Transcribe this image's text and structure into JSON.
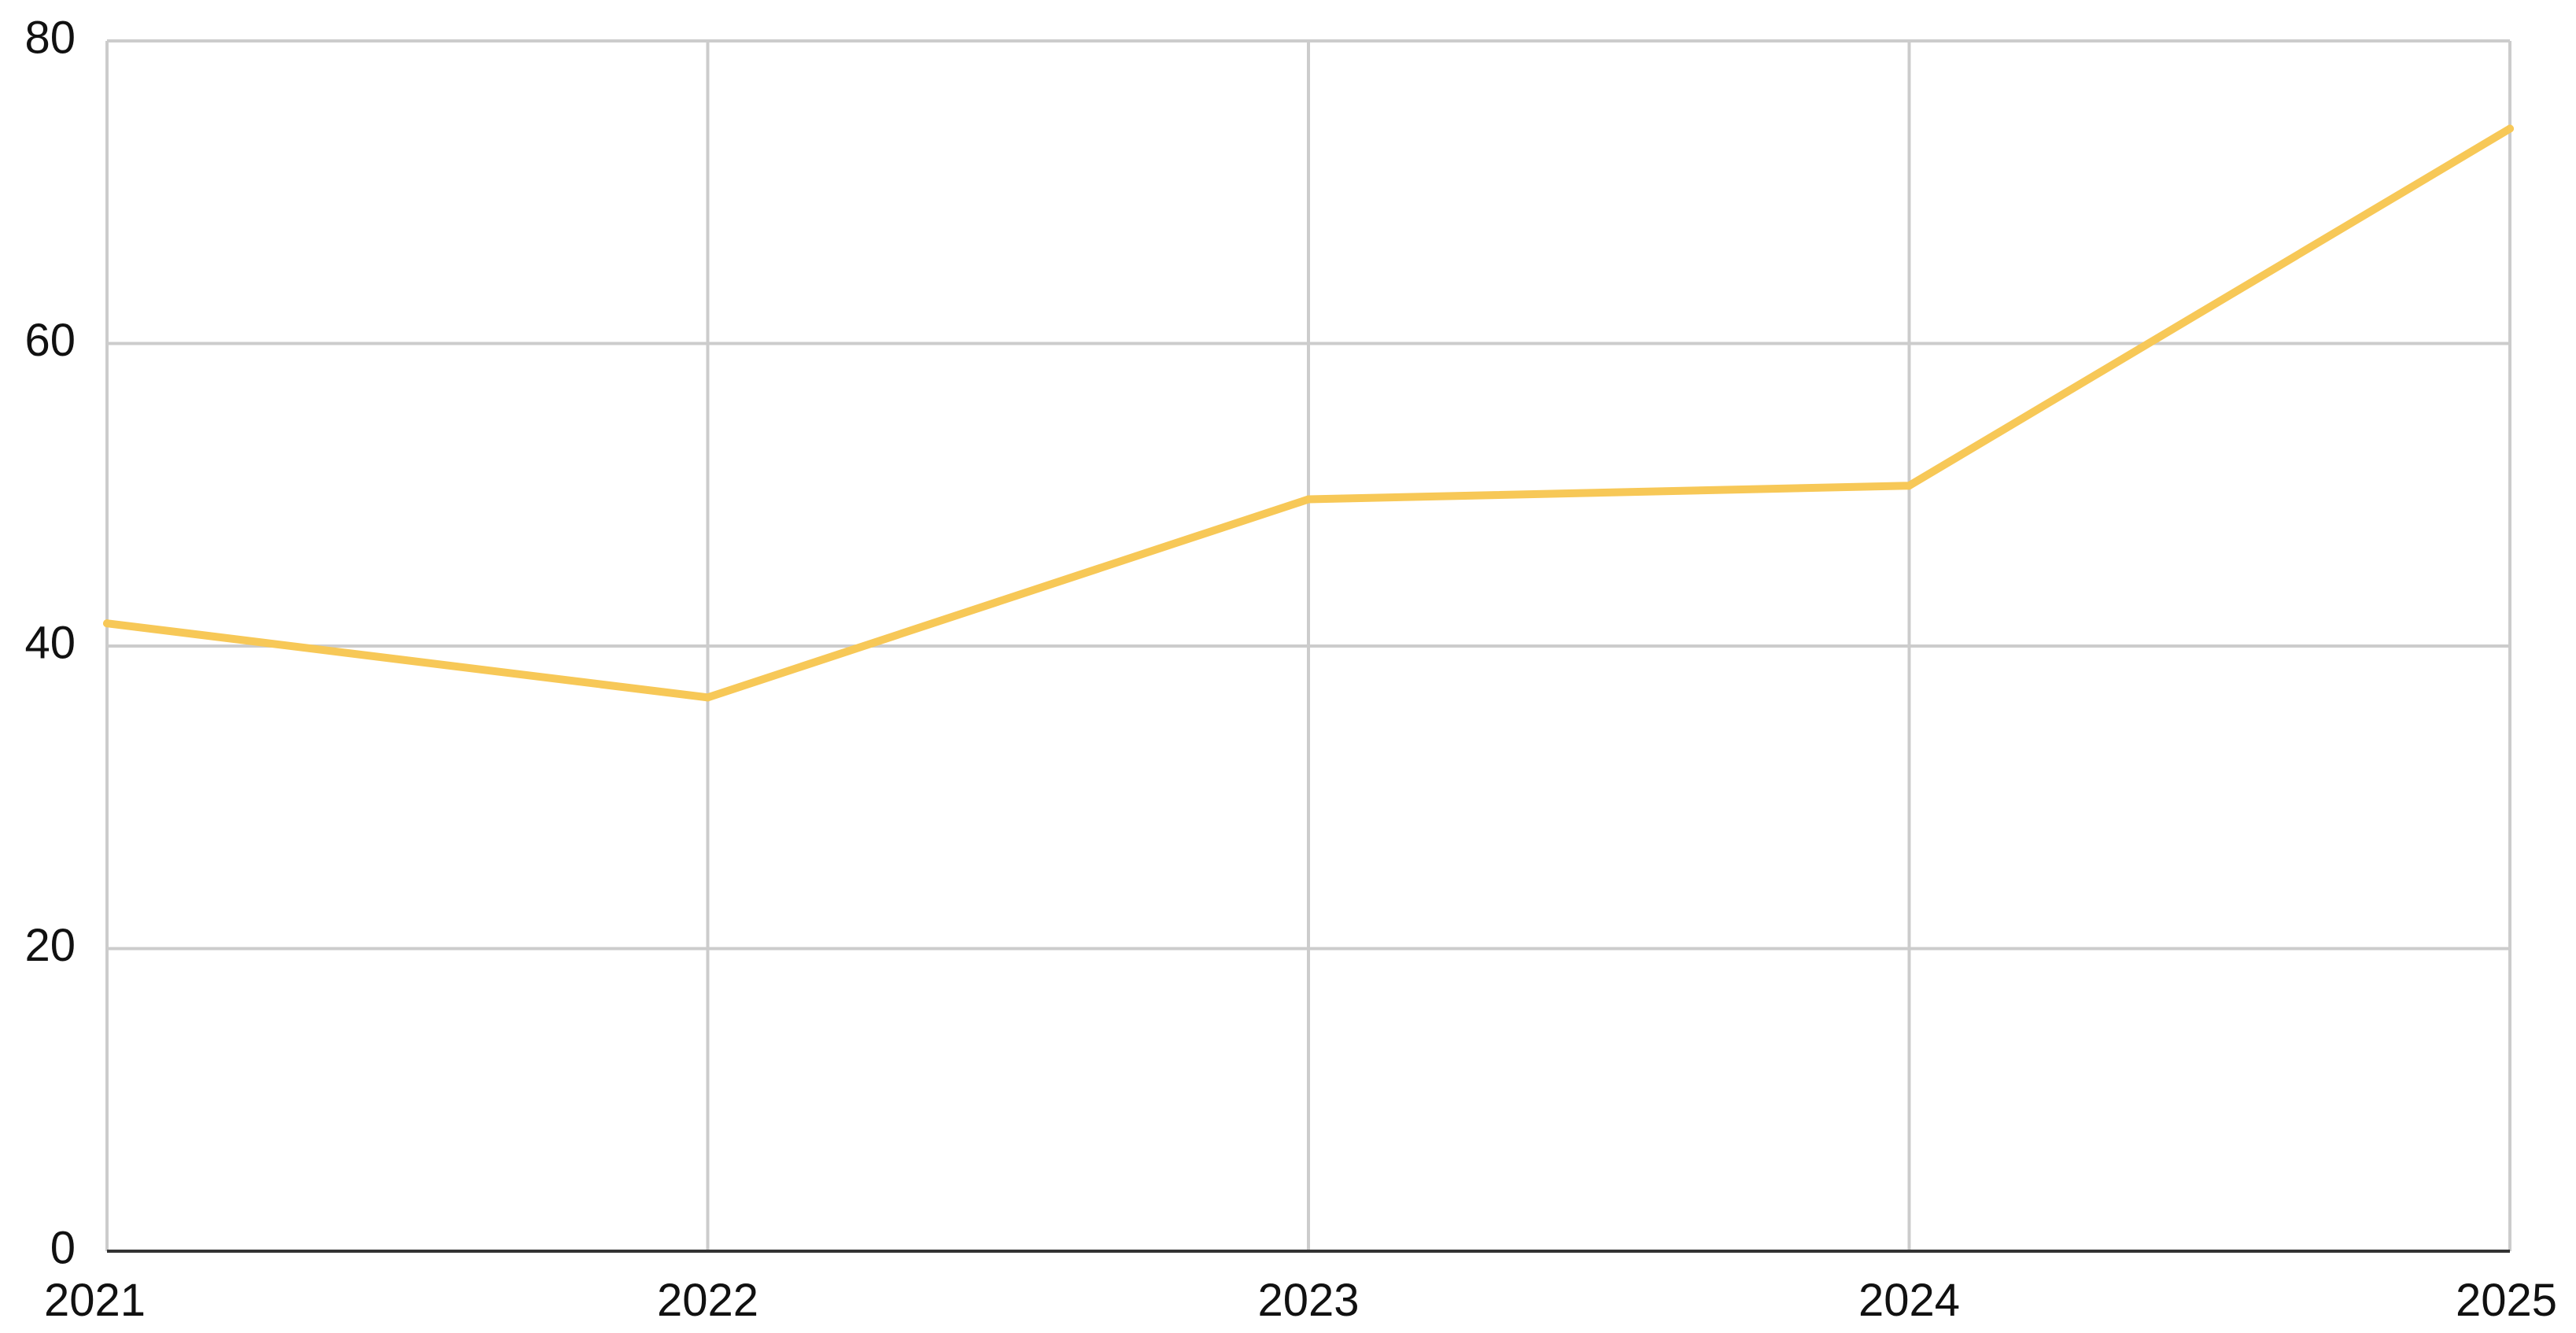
{
  "chart_data": {
    "type": "line",
    "x": [
      "2021",
      "2022",
      "2023",
      "2024",
      "2025"
    ],
    "series": [
      {
        "values": [
          41.5,
          36.6,
          49.7,
          50.6,
          74.2
        ],
        "color": "#f7c857"
      }
    ],
    "yticks": [
      "0",
      "20",
      "40",
      "60",
      "80"
    ],
    "ylim": [
      0,
      80
    ],
    "grid": true,
    "legend": "none"
  }
}
